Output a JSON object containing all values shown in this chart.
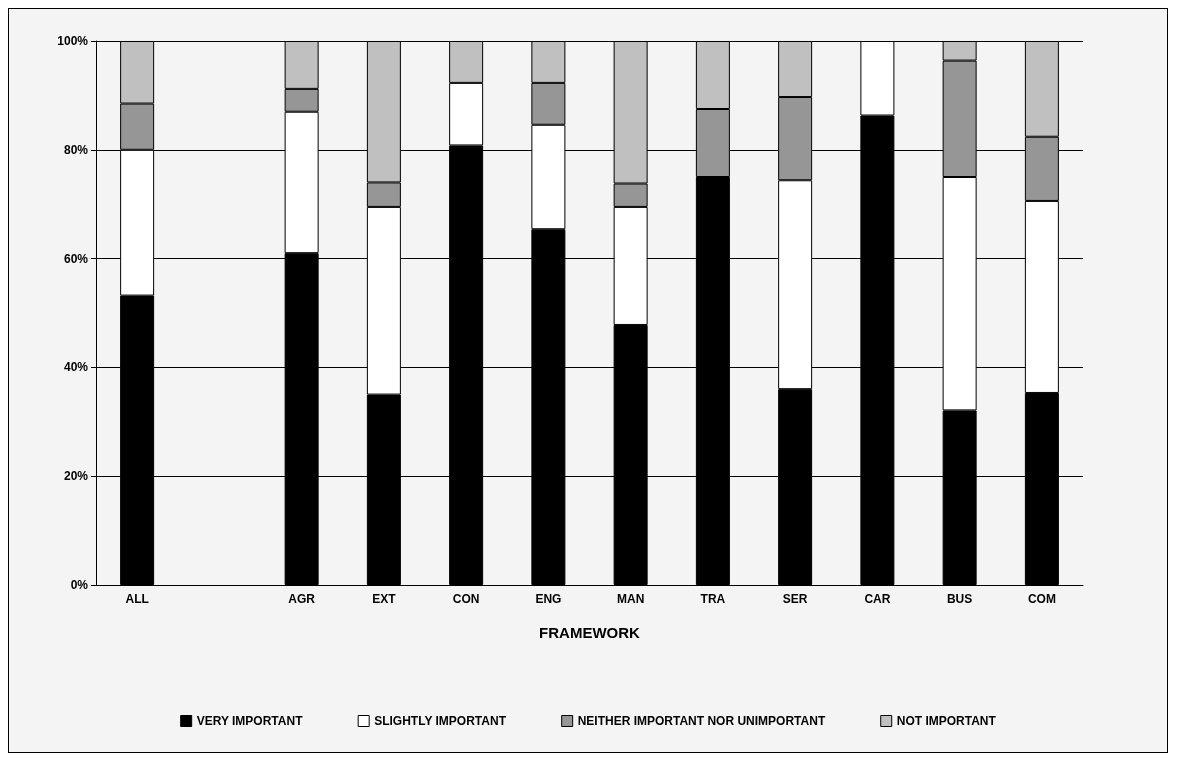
{
  "chart_data": {
    "type": "bar",
    "stacked": true,
    "xlabel": "FRAMEWORK",
    "categories": [
      "ALL",
      null,
      "AGR",
      "EXT",
      "CON",
      "ENG",
      "MAN",
      "TRA",
      "SER",
      "CAR",
      "BUS",
      "COM"
    ],
    "series": [
      {
        "name": "VERY IMPORTANT",
        "color": "#000000",
        "values": [
          53.2,
          null,
          61,
          35,
          80.8,
          65.4,
          47.8,
          75,
          36,
          86.3,
          32.1,
          35.3
        ]
      },
      {
        "name": "SLIGHTLY IMPORTANT",
        "color": "#ffffff",
        "values": [
          26.8,
          null,
          26,
          34.5,
          11.5,
          19.2,
          21.7,
          null,
          38.4,
          13.7,
          42.9,
          35.3
        ]
      },
      {
        "name": "NEITHER IMPORTANT NOR UNIMPORTANT",
        "color": "#969696",
        "values": [
          8.5,
          null,
          4.2,
          4.5,
          null,
          7.7,
          4.3,
          12.5,
          15.3,
          null,
          21.4,
          11.8
        ]
      },
      {
        "name": "NOT IMPORTANT",
        "color": "#c0c0c0",
        "values": [
          11.5,
          null,
          8.8,
          26,
          7.7,
          7.7,
          26.2,
          12.5,
          10.3,
          null,
          3.6,
          17.6
        ]
      }
    ],
    "ylim": [
      0,
      100
    ],
    "yticks": [
      {
        "value": 0,
        "label": "0%"
      },
      {
        "value": 20,
        "label": "20%"
      },
      {
        "value": 40,
        "label": "40%"
      },
      {
        "value": 60,
        "label": "60%"
      },
      {
        "value": 80,
        "label": "80%"
      },
      {
        "value": 100,
        "label": "100%"
      }
    ],
    "grid": "y",
    "legend": "bottom"
  }
}
